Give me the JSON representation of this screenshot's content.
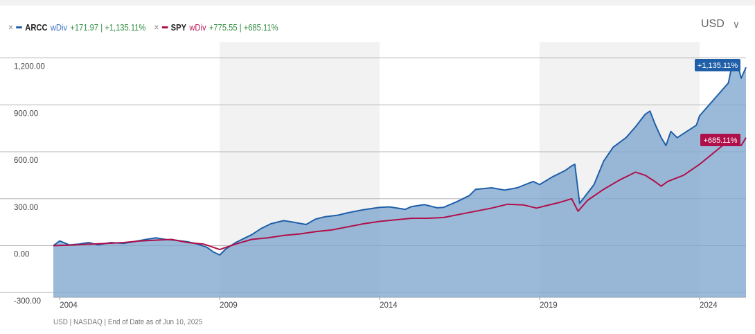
{
  "header": {
    "currency": "USD",
    "currency_chevron": "∨"
  },
  "legend": [
    {
      "ticker": "ARCC",
      "mode": "wDiv",
      "change": "+171.97 | +1,135.11%",
      "color": "#1f5fa8",
      "wdiv_color": "#3b74c4",
      "remove": "×"
    },
    {
      "ticker": "SPY",
      "mode": "wDiv",
      "change": "+775.55 | +685.11%",
      "color": "#b0104a",
      "wdiv_color": "#c0185a",
      "remove": "×"
    }
  ],
  "footer": "USD | NASDAQ | End of Date as of Jun 10, 2025",
  "chart_data": {
    "type": "area",
    "x_range": [
      2003.8,
      2025.45
    ],
    "ylim": [
      -330,
      1300
    ],
    "y_ticks": [
      1200,
      900,
      600,
      300,
      0,
      -300
    ],
    "y_tick_labels": [
      "1,200.00",
      "900.00",
      "600.00",
      "300.00",
      "0.00",
      "-300.00"
    ],
    "x_ticks": [
      2004,
      2009,
      2014,
      2019,
      2024
    ],
    "x_tick_labels": [
      "2004",
      "2009",
      "2014",
      "2019",
      "2024"
    ],
    "shaded_bands": [
      [
        2009,
        2014
      ],
      [
        2019,
        2024
      ]
    ],
    "grid": "horizontal",
    "series": [
      {
        "name": "ARCC",
        "color": "#1f5fa8",
        "fill": "#7fa6d0",
        "end_label": "+1,135.11%",
        "points": [
          [
            2003.8,
            0
          ],
          [
            2004.0,
            30
          ],
          [
            2004.3,
            5
          ],
          [
            2004.6,
            10
          ],
          [
            2004.9,
            20
          ],
          [
            2005.2,
            5
          ],
          [
            2005.6,
            20
          ],
          [
            2006.0,
            15
          ],
          [
            2006.3,
            25
          ],
          [
            2006.7,
            40
          ],
          [
            2007.0,
            50
          ],
          [
            2007.3,
            40
          ],
          [
            2007.6,
            35
          ],
          [
            2008.0,
            25
          ],
          [
            2008.3,
            10
          ],
          [
            2008.6,
            -10
          ],
          [
            2008.8,
            -40
          ],
          [
            2009.0,
            -60
          ],
          [
            2009.2,
            -20
          ],
          [
            2009.5,
            20
          ],
          [
            2009.8,
            50
          ],
          [
            2010.0,
            70
          ],
          [
            2010.3,
            110
          ],
          [
            2010.6,
            140
          ],
          [
            2011.0,
            160
          ],
          [
            2011.3,
            150
          ],
          [
            2011.7,
            135
          ],
          [
            2012.0,
            170
          ],
          [
            2012.3,
            185
          ],
          [
            2012.7,
            195
          ],
          [
            2013.0,
            210
          ],
          [
            2013.5,
            230
          ],
          [
            2014.0,
            245
          ],
          [
            2014.3,
            248
          ],
          [
            2014.8,
            232
          ],
          [
            2015.0,
            250
          ],
          [
            2015.4,
            262
          ],
          [
            2015.8,
            242
          ],
          [
            2016.0,
            245
          ],
          [
            2016.4,
            280
          ],
          [
            2016.8,
            320
          ],
          [
            2017.0,
            360
          ],
          [
            2017.5,
            370
          ],
          [
            2017.9,
            355
          ],
          [
            2018.3,
            370
          ],
          [
            2018.8,
            410
          ],
          [
            2019.0,
            390
          ],
          [
            2019.4,
            440
          ],
          [
            2019.8,
            480
          ],
          [
            2020.0,
            510
          ],
          [
            2020.1,
            520
          ],
          [
            2020.25,
            270
          ],
          [
            2020.4,
            310
          ],
          [
            2020.7,
            390
          ],
          [
            2021.0,
            540
          ],
          [
            2021.3,
            630
          ],
          [
            2021.7,
            690
          ],
          [
            2022.0,
            760
          ],
          [
            2022.3,
            840
          ],
          [
            2022.45,
            860
          ],
          [
            2022.6,
            780
          ],
          [
            2022.8,
            690
          ],
          [
            2022.95,
            640
          ],
          [
            2023.1,
            730
          ],
          [
            2023.3,
            690
          ],
          [
            2023.6,
            730
          ],
          [
            2023.9,
            770
          ],
          [
            2024.0,
            830
          ],
          [
            2024.3,
            900
          ],
          [
            2024.6,
            970
          ],
          [
            2024.9,
            1040
          ],
          [
            2025.05,
            1190
          ],
          [
            2025.2,
            1150
          ],
          [
            2025.3,
            1070
          ],
          [
            2025.45,
            1140
          ]
        ]
      },
      {
        "name": "SPY",
        "color": "#b0104a",
        "end_label": "+685.11%",
        "points": [
          [
            2003.8,
            0
          ],
          [
            2004.5,
            5
          ],
          [
            2005.0,
            10
          ],
          [
            2005.5,
            15
          ],
          [
            2006.0,
            20
          ],
          [
            2006.5,
            30
          ],
          [
            2007.0,
            35
          ],
          [
            2007.5,
            40
          ],
          [
            2008.0,
            20
          ],
          [
            2008.5,
            10
          ],
          [
            2009.0,
            -25
          ],
          [
            2009.5,
            10
          ],
          [
            2010.0,
            40
          ],
          [
            2010.5,
            50
          ],
          [
            2011.0,
            65
          ],
          [
            2011.5,
            75
          ],
          [
            2012.0,
            90
          ],
          [
            2012.5,
            100
          ],
          [
            2013.0,
            120
          ],
          [
            2013.5,
            140
          ],
          [
            2014.0,
            155
          ],
          [
            2014.5,
            165
          ],
          [
            2015.0,
            175
          ],
          [
            2015.5,
            175
          ],
          [
            2016.0,
            180
          ],
          [
            2016.5,
            200
          ],
          [
            2017.0,
            220
          ],
          [
            2017.5,
            240
          ],
          [
            2018.0,
            265
          ],
          [
            2018.5,
            260
          ],
          [
            2018.9,
            240
          ],
          [
            2019.2,
            255
          ],
          [
            2019.6,
            275
          ],
          [
            2020.0,
            300
          ],
          [
            2020.2,
            220
          ],
          [
            2020.5,
            290
          ],
          [
            2021.0,
            360
          ],
          [
            2021.5,
            420
          ],
          [
            2022.0,
            470
          ],
          [
            2022.3,
            450
          ],
          [
            2022.6,
            410
          ],
          [
            2022.8,
            380
          ],
          [
            2023.0,
            410
          ],
          [
            2023.5,
            450
          ],
          [
            2024.0,
            520
          ],
          [
            2024.3,
            570
          ],
          [
            2024.6,
            620
          ],
          [
            2024.9,
            670
          ],
          [
            2025.1,
            650
          ],
          [
            2025.3,
            640
          ],
          [
            2025.45,
            690
          ]
        ]
      }
    ]
  }
}
